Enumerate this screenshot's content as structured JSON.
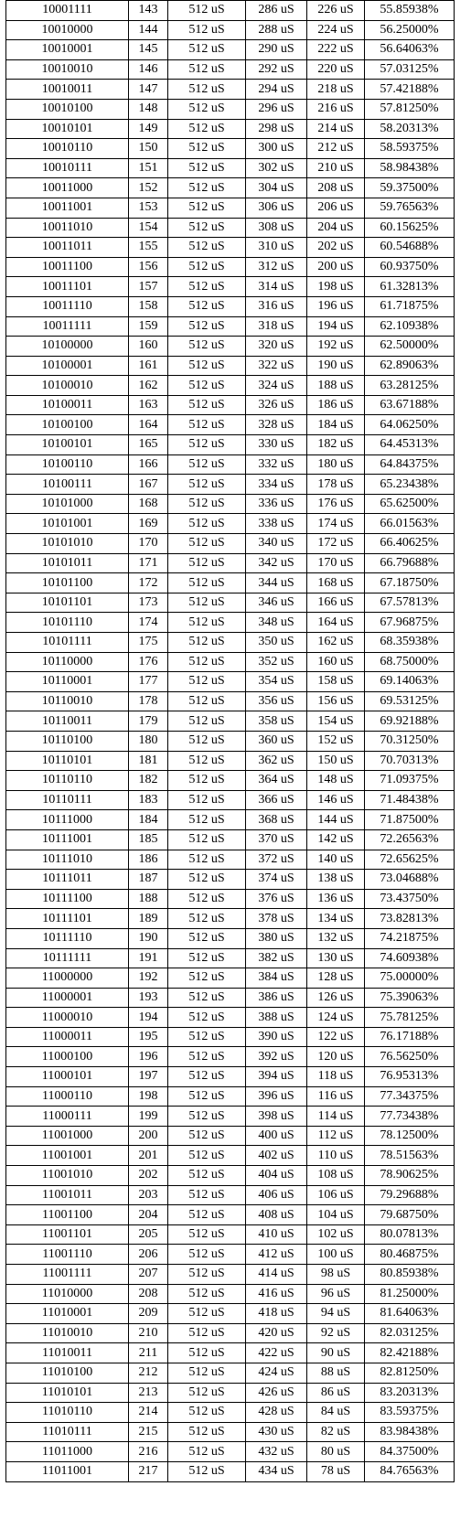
{
  "table": {
    "rows": [
      [
        "10001111",
        "143",
        "512 uS",
        "286 uS",
        "226 uS",
        "55.85938%"
      ],
      [
        "10010000",
        "144",
        "512 uS",
        "288 uS",
        "224 uS",
        "56.25000%"
      ],
      [
        "10010001",
        "145",
        "512 uS",
        "290 uS",
        "222 uS",
        "56.64063%"
      ],
      [
        "10010010",
        "146",
        "512 uS",
        "292 uS",
        "220 uS",
        "57.03125%"
      ],
      [
        "10010011",
        "147",
        "512 uS",
        "294 uS",
        "218 uS",
        "57.42188%"
      ],
      [
        "10010100",
        "148",
        "512 uS",
        "296 uS",
        "216 uS",
        "57.81250%"
      ],
      [
        "10010101",
        "149",
        "512 uS",
        "298 uS",
        "214 uS",
        "58.20313%"
      ],
      [
        "10010110",
        "150",
        "512 uS",
        "300 uS",
        "212 uS",
        "58.59375%"
      ],
      [
        "10010111",
        "151",
        "512 uS",
        "302 uS",
        "210 uS",
        "58.98438%"
      ],
      [
        "10011000",
        "152",
        "512 uS",
        "304 uS",
        "208 uS",
        "59.37500%"
      ],
      [
        "10011001",
        "153",
        "512 uS",
        "306 uS",
        "206 uS",
        "59.76563%"
      ],
      [
        "10011010",
        "154",
        "512 uS",
        "308 uS",
        "204 uS",
        "60.15625%"
      ],
      [
        "10011011",
        "155",
        "512 uS",
        "310 uS",
        "202 uS",
        "60.54688%"
      ],
      [
        "10011100",
        "156",
        "512 uS",
        "312 uS",
        "200 uS",
        "60.93750%"
      ],
      [
        "10011101",
        "157",
        "512 uS",
        "314 uS",
        "198 uS",
        "61.32813%"
      ],
      [
        "10011110",
        "158",
        "512 uS",
        "316 uS",
        "196 uS",
        "61.71875%"
      ],
      [
        "10011111",
        "159",
        "512 uS",
        "318 uS",
        "194 uS",
        "62.10938%"
      ],
      [
        "10100000",
        "160",
        "512 uS",
        "320 uS",
        "192 uS",
        "62.50000%"
      ],
      [
        "10100001",
        "161",
        "512 uS",
        "322 uS",
        "190 uS",
        "62.89063%"
      ],
      [
        "10100010",
        "162",
        "512 uS",
        "324 uS",
        "188 uS",
        "63.28125%"
      ],
      [
        "10100011",
        "163",
        "512 uS",
        "326 uS",
        "186 uS",
        "63.67188%"
      ],
      [
        "10100100",
        "164",
        "512 uS",
        "328 uS",
        "184 uS",
        "64.06250%"
      ],
      [
        "10100101",
        "165",
        "512 uS",
        "330 uS",
        "182 uS",
        "64.45313%"
      ],
      [
        "10100110",
        "166",
        "512 uS",
        "332 uS",
        "180 uS",
        "64.84375%"
      ],
      [
        "10100111",
        "167",
        "512 uS",
        "334 uS",
        "178 uS",
        "65.23438%"
      ],
      [
        "10101000",
        "168",
        "512 uS",
        "336 uS",
        "176 uS",
        "65.62500%"
      ],
      [
        "10101001",
        "169",
        "512 uS",
        "338 uS",
        "174 uS",
        "66.01563%"
      ],
      [
        "10101010",
        "170",
        "512 uS",
        "340 uS",
        "172 uS",
        "66.40625%"
      ],
      [
        "10101011",
        "171",
        "512 uS",
        "342 uS",
        "170 uS",
        "66.79688%"
      ],
      [
        "10101100",
        "172",
        "512 uS",
        "344 uS",
        "168 uS",
        "67.18750%"
      ],
      [
        "10101101",
        "173",
        "512 uS",
        "346 uS",
        "166 uS",
        "67.57813%"
      ],
      [
        "10101110",
        "174",
        "512 uS",
        "348 uS",
        "164 uS",
        "67.96875%"
      ],
      [
        "10101111",
        "175",
        "512 uS",
        "350 uS",
        "162 uS",
        "68.35938%"
      ],
      [
        "10110000",
        "176",
        "512 uS",
        "352 uS",
        "160 uS",
        "68.75000%"
      ],
      [
        "10110001",
        "177",
        "512 uS",
        "354 uS",
        "158 uS",
        "69.14063%"
      ],
      [
        "10110010",
        "178",
        "512 uS",
        "356 uS",
        "156 uS",
        "69.53125%"
      ],
      [
        "10110011",
        "179",
        "512 uS",
        "358 uS",
        "154 uS",
        "69.92188%"
      ],
      [
        "10110100",
        "180",
        "512 uS",
        "360 uS",
        "152 uS",
        "70.31250%"
      ],
      [
        "10110101",
        "181",
        "512 uS",
        "362 uS",
        "150 uS",
        "70.70313%"
      ],
      [
        "10110110",
        "182",
        "512 uS",
        "364 uS",
        "148 uS",
        "71.09375%"
      ],
      [
        "10110111",
        "183",
        "512 uS",
        "366 uS",
        "146 uS",
        "71.48438%"
      ],
      [
        "10111000",
        "184",
        "512 uS",
        "368 uS",
        "144 uS",
        "71.87500%"
      ],
      [
        "10111001",
        "185",
        "512 uS",
        "370 uS",
        "142 uS",
        "72.26563%"
      ],
      [
        "10111010",
        "186",
        "512 uS",
        "372 uS",
        "140 uS",
        "72.65625%"
      ],
      [
        "10111011",
        "187",
        "512 uS",
        "374 uS",
        "138 uS",
        "73.04688%"
      ],
      [
        "10111100",
        "188",
        "512 uS",
        "376 uS",
        "136 uS",
        "73.43750%"
      ],
      [
        "10111101",
        "189",
        "512 uS",
        "378 uS",
        "134 uS",
        "73.82813%"
      ],
      [
        "10111110",
        "190",
        "512 uS",
        "380 uS",
        "132 uS",
        "74.21875%"
      ],
      [
        "10111111",
        "191",
        "512 uS",
        "382 uS",
        "130 uS",
        "74.60938%"
      ],
      [
        "11000000",
        "192",
        "512 uS",
        "384 uS",
        "128 uS",
        "75.00000%"
      ],
      [
        "11000001",
        "193",
        "512 uS",
        "386 uS",
        "126 uS",
        "75.39063%"
      ],
      [
        "11000010",
        "194",
        "512 uS",
        "388 uS",
        "124 uS",
        "75.78125%"
      ],
      [
        "11000011",
        "195",
        "512 uS",
        "390 uS",
        "122 uS",
        "76.17188%"
      ],
      [
        "11000100",
        "196",
        "512 uS",
        "392 uS",
        "120 uS",
        "76.56250%"
      ],
      [
        "11000101",
        "197",
        "512 uS",
        "394 uS",
        "118 uS",
        "76.95313%"
      ],
      [
        "11000110",
        "198",
        "512 uS",
        "396 uS",
        "116 uS",
        "77.34375%"
      ],
      [
        "11000111",
        "199",
        "512 uS",
        "398 uS",
        "114 uS",
        "77.73438%"
      ],
      [
        "11001000",
        "200",
        "512 uS",
        "400 uS",
        "112 uS",
        "78.12500%"
      ],
      [
        "11001001",
        "201",
        "512 uS",
        "402 uS",
        "110 uS",
        "78.51563%"
      ],
      [
        "11001010",
        "202",
        "512 uS",
        "404 uS",
        "108 uS",
        "78.90625%"
      ],
      [
        "11001011",
        "203",
        "512 uS",
        "406 uS",
        "106 uS",
        "79.29688%"
      ],
      [
        "11001100",
        "204",
        "512 uS",
        "408 uS",
        "104 uS",
        "79.68750%"
      ],
      [
        "11001101",
        "205",
        "512 uS",
        "410 uS",
        "102 uS",
        "80.07813%"
      ],
      [
        "11001110",
        "206",
        "512 uS",
        "412 uS",
        "100 uS",
        "80.46875%"
      ],
      [
        "11001111",
        "207",
        "512 uS",
        "414 uS",
        "98 uS",
        "80.85938%"
      ],
      [
        "11010000",
        "208",
        "512 uS",
        "416 uS",
        "96 uS",
        "81.25000%"
      ],
      [
        "11010001",
        "209",
        "512 uS",
        "418 uS",
        "94 uS",
        "81.64063%"
      ],
      [
        "11010010",
        "210",
        "512 uS",
        "420 uS",
        "92 uS",
        "82.03125%"
      ],
      [
        "11010011",
        "211",
        "512 uS",
        "422 uS",
        "90 uS",
        "82.42188%"
      ],
      [
        "11010100",
        "212",
        "512 uS",
        "424 uS",
        "88 uS",
        "82.81250%"
      ],
      [
        "11010101",
        "213",
        "512 uS",
        "426 uS",
        "86 uS",
        "83.20313%"
      ],
      [
        "11010110",
        "214",
        "512 uS",
        "428 uS",
        "84 uS",
        "83.59375%"
      ],
      [
        "11010111",
        "215",
        "512 uS",
        "430 uS",
        "82 uS",
        "83.98438%"
      ],
      [
        "11011000",
        "216",
        "512 uS",
        "432 uS",
        "80 uS",
        "84.37500%"
      ],
      [
        "11011001",
        "217",
        "512 uS",
        "434 uS",
        "78 uS",
        "84.76563%"
      ]
    ]
  }
}
